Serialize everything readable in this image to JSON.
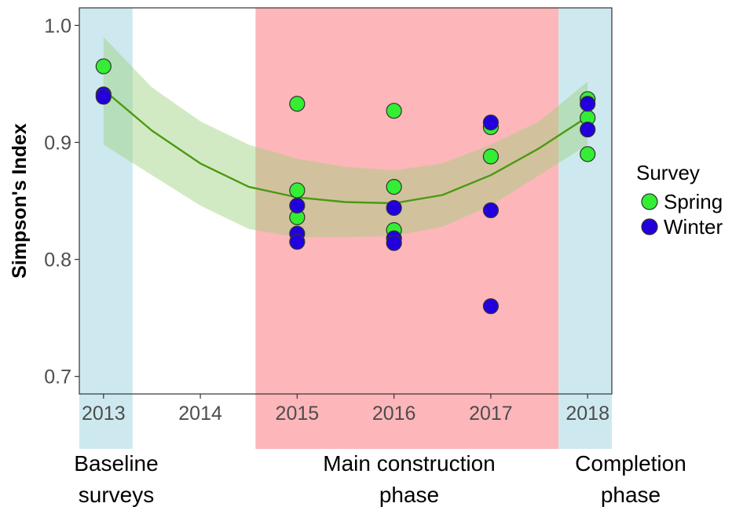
{
  "chart_data": {
    "type": "scatter",
    "title": "",
    "xlabel": "",
    "ylabel": "Simpson's Index",
    "xlim": [
      2012.75,
      2018.25
    ],
    "ylim": [
      0.685,
      1.015
    ],
    "x_ticks": [
      "2013",
      "2014",
      "2015",
      "2016",
      "2017",
      "2018"
    ],
    "y_ticks": [
      "0.7",
      "0.8",
      "0.9",
      "1.0"
    ],
    "grid": false,
    "legend": {
      "title": "Survey",
      "placement": "right",
      "entries": [
        {
          "name": "Spring",
          "color": "#33ee33"
        },
        {
          "name": "Winter",
          "color": "#2200dd"
        }
      ]
    },
    "phases": [
      {
        "label": [
          "Baseline",
          "surveys"
        ],
        "from": 2012.75,
        "to": 2013.3,
        "color": "#cde9ef"
      },
      {
        "label": [
          "Main construction",
          "phase"
        ],
        "from": 2014.57,
        "to": 2017.7,
        "color": "#fdb6ba"
      },
      {
        "label": [
          "Completion",
          "phase"
        ],
        "from": 2017.7,
        "to": 2018.25,
        "color": "#cde9ef"
      }
    ],
    "series": [
      {
        "name": "Spring",
        "color": "#33ee33",
        "points": [
          [
            2013,
            0.965
          ],
          [
            2015,
            0.933
          ],
          [
            2015,
            0.859
          ],
          [
            2015,
            0.836
          ],
          [
            2016,
            0.927
          ],
          [
            2016,
            0.862
          ],
          [
            2016,
            0.825
          ],
          [
            2017,
            0.913
          ],
          [
            2017,
            0.888
          ],
          [
            2018,
            0.937
          ],
          [
            2018,
            0.921
          ],
          [
            2018,
            0.89
          ]
        ]
      },
      {
        "name": "Winter",
        "color": "#2200dd",
        "points": [
          [
            2013,
            0.941
          ],
          [
            2013,
            0.939
          ],
          [
            2015,
            0.846
          ],
          [
            2015,
            0.822
          ],
          [
            2015,
            0.815
          ],
          [
            2016,
            0.844
          ],
          [
            2016,
            0.818
          ],
          [
            2016,
            0.814
          ],
          [
            2017,
            0.917
          ],
          [
            2017,
            0.842
          ],
          [
            2017,
            0.76
          ],
          [
            2018,
            0.933
          ],
          [
            2018,
            0.911
          ]
        ]
      }
    ],
    "trend": {
      "color": "#4a9a12",
      "band_color": "#9cd07a",
      "x": [
        2013,
        2013.5,
        2014,
        2014.5,
        2015,
        2015.5,
        2016,
        2016.5,
        2017,
        2017.5,
        2018
      ],
      "y": [
        0.945,
        0.91,
        0.882,
        0.862,
        0.853,
        0.849,
        0.848,
        0.855,
        0.872,
        0.895,
        0.922
      ],
      "lower": [
        0.898,
        0.872,
        0.846,
        0.826,
        0.819,
        0.819,
        0.82,
        0.828,
        0.846,
        0.872,
        0.898
      ],
      "upper": [
        0.99,
        0.947,
        0.918,
        0.898,
        0.886,
        0.879,
        0.876,
        0.882,
        0.898,
        0.918,
        0.952
      ]
    }
  }
}
